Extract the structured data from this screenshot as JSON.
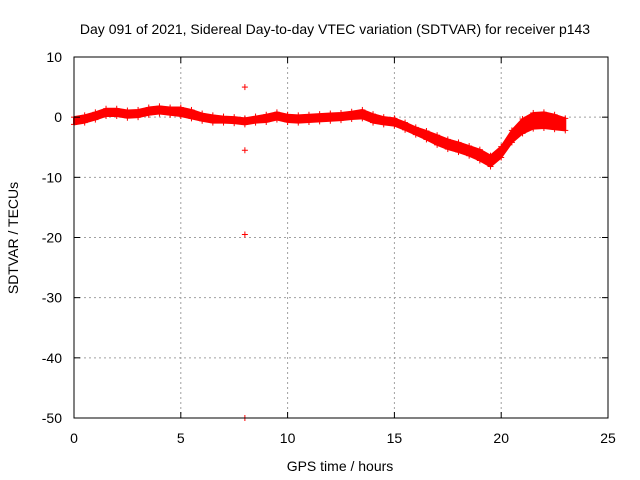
{
  "chart_data": {
    "type": "scatter",
    "title": "Day 091 of 2021, Sidereal Day-to-day VTEC variation (SDTVAR) for receiver p143",
    "xlabel": "GPS time / hours",
    "ylabel": "SDTVAR / TECUs",
    "xlim": [
      0,
      25
    ],
    "ylim": [
      -50,
      10
    ],
    "xticks": [
      0,
      5,
      10,
      15,
      20,
      25
    ],
    "yticks": [
      10,
      0,
      -10,
      -20,
      -30,
      -40,
      -50
    ],
    "grid": true,
    "marker": "+",
    "series_color": "#ff0000",
    "band_profile": [
      {
        "x": 0.0,
        "y": -0.6,
        "spread": 0.6
      },
      {
        "x": 0.5,
        "y": -0.3,
        "spread": 0.6
      },
      {
        "x": 1.0,
        "y": 0.2,
        "spread": 0.6
      },
      {
        "x": 1.5,
        "y": 0.8,
        "spread": 0.6
      },
      {
        "x": 2.0,
        "y": 0.8,
        "spread": 0.6
      },
      {
        "x": 2.5,
        "y": 0.5,
        "spread": 0.6
      },
      {
        "x": 3.0,
        "y": 0.6,
        "spread": 0.6
      },
      {
        "x": 3.5,
        "y": 1.0,
        "spread": 0.6
      },
      {
        "x": 4.0,
        "y": 1.2,
        "spread": 0.6
      },
      {
        "x": 4.5,
        "y": 1.0,
        "spread": 0.6
      },
      {
        "x": 5.0,
        "y": 0.9,
        "spread": 0.7
      },
      {
        "x": 5.5,
        "y": 0.5,
        "spread": 0.7
      },
      {
        "x": 6.0,
        "y": 0.0,
        "spread": 0.6
      },
      {
        "x": 6.5,
        "y": -0.3,
        "spread": 0.6
      },
      {
        "x": 7.0,
        "y": -0.4,
        "spread": 0.5
      },
      {
        "x": 7.5,
        "y": -0.5,
        "spread": 0.5
      },
      {
        "x": 8.0,
        "y": -0.7,
        "spread": 0.5
      },
      {
        "x": 8.5,
        "y": -0.4,
        "spread": 0.5
      },
      {
        "x": 9.0,
        "y": -0.2,
        "spread": 0.6
      },
      {
        "x": 9.5,
        "y": 0.2,
        "spread": 0.6
      },
      {
        "x": 10.0,
        "y": -0.2,
        "spread": 0.6
      },
      {
        "x": 10.5,
        "y": -0.3,
        "spread": 0.6
      },
      {
        "x": 11.0,
        "y": -0.2,
        "spread": 0.6
      },
      {
        "x": 11.5,
        "y": -0.1,
        "spread": 0.6
      },
      {
        "x": 12.0,
        "y": 0.0,
        "spread": 0.6
      },
      {
        "x": 12.5,
        "y": 0.1,
        "spread": 0.6
      },
      {
        "x": 13.0,
        "y": 0.3,
        "spread": 0.6
      },
      {
        "x": 13.5,
        "y": 0.5,
        "spread": 0.7
      },
      {
        "x": 14.0,
        "y": -0.2,
        "spread": 0.7
      },
      {
        "x": 14.5,
        "y": -0.6,
        "spread": 0.6
      },
      {
        "x": 15.0,
        "y": -0.8,
        "spread": 0.6
      },
      {
        "x": 15.5,
        "y": -1.5,
        "spread": 0.6
      },
      {
        "x": 16.0,
        "y": -2.3,
        "spread": 0.6
      },
      {
        "x": 16.5,
        "y": -3.0,
        "spread": 0.7
      },
      {
        "x": 17.0,
        "y": -3.8,
        "spread": 0.8
      },
      {
        "x": 17.5,
        "y": -4.5,
        "spread": 0.8
      },
      {
        "x": 18.0,
        "y": -5.0,
        "spread": 0.8
      },
      {
        "x": 18.5,
        "y": -5.6,
        "spread": 0.8
      },
      {
        "x": 19.0,
        "y": -6.3,
        "spread": 0.9
      },
      {
        "x": 19.5,
        "y": -7.3,
        "spread": 0.9
      },
      {
        "x": 20.0,
        "y": -5.8,
        "spread": 0.9
      },
      {
        "x": 20.5,
        "y": -3.2,
        "spread": 1.0
      },
      {
        "x": 21.0,
        "y": -1.5,
        "spread": 1.2
      },
      {
        "x": 21.5,
        "y": -0.6,
        "spread": 1.3
      },
      {
        "x": 22.0,
        "y": -0.5,
        "spread": 1.3
      },
      {
        "x": 22.5,
        "y": -0.8,
        "spread": 1.2
      },
      {
        "x": 23.0,
        "y": -1.2,
        "spread": 1.0
      }
    ],
    "outliers": [
      {
        "x": 8.0,
        "y": 5.0
      },
      {
        "x": 8.0,
        "y": -5.5
      },
      {
        "x": 8.0,
        "y": -19.5
      },
      {
        "x": 8.0,
        "y": -50.0
      },
      {
        "x": 16.7,
        "y": -3.0
      },
      {
        "x": 17.2,
        "y": -4.2
      }
    ]
  }
}
